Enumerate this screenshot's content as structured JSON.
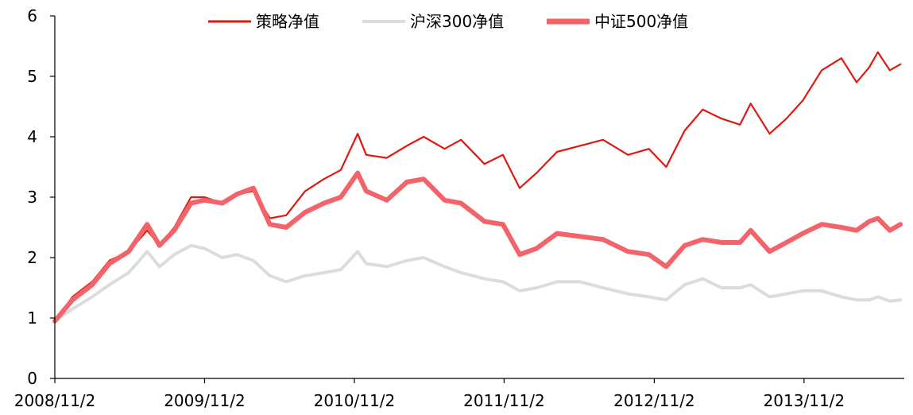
{
  "chart_data": {
    "type": "line",
    "title": "",
    "xlabel": "",
    "ylabel": "",
    "ylim": [
      0,
      6
    ],
    "yticks": [
      "0",
      "1",
      "2",
      "3",
      "4",
      "5",
      "6"
    ],
    "xticks": [
      "2008/11/2",
      "2009/11/2",
      "2010/11/2",
      "2011/11/2",
      "2012/11/2",
      "2013/11/2"
    ],
    "grid": false,
    "legend_position": "top",
    "series": [
      {
        "name": "策略净值",
        "color": "#e0190f",
        "x": [
          "2008/11/2",
          "2008/12/15",
          "2009/2/1",
          "2009/3/15",
          "2009/5/1",
          "2009/6/15",
          "2009/7/15",
          "2009/8/20",
          "2009/9/30",
          "2009/11/2",
          "2009/12/15",
          "2010/1/20",
          "2010/3/1",
          "2010/4/10",
          "2010/5/20",
          "2010/7/5",
          "2010/8/20",
          "2010/9/30",
          "2010/11/10",
          "2010/12/1",
          "2011/1/20",
          "2011/3/10",
          "2011/4/20",
          "2011/6/10",
          "2011/7/20",
          "2011/9/15",
          "2011/10/30",
          "2011/12/10",
          "2012/1/20",
          "2012/3/10",
          "2012/5/5",
          "2012/6/30",
          "2012/8/30",
          "2012/10/20",
          "2012/12/1",
          "2013/1/15",
          "2013/2/28",
          "2013/4/15",
          "2013/5/30",
          "2013/6/25",
          "2013/8/10",
          "2013/9/20",
          "2013/10/30",
          "2013/12/15",
          "2014/2/1",
          "2014/3/10",
          "2014/4/10",
          "2014/5/1",
          "2014/5/30",
          "2014/6/25"
        ],
        "values": [
          0.95,
          1.35,
          1.6,
          1.95,
          2.1,
          2.45,
          2.2,
          2.5,
          3.0,
          3.0,
          2.9,
          3.05,
          3.1,
          2.65,
          2.7,
          3.1,
          3.3,
          3.45,
          4.05,
          3.7,
          3.65,
          3.85,
          4.0,
          3.8,
          3.95,
          3.55,
          3.7,
          3.15,
          3.4,
          3.75,
          3.85,
          3.95,
          3.7,
          3.8,
          3.5,
          4.1,
          4.45,
          4.3,
          4.2,
          4.55,
          4.05,
          4.3,
          4.6,
          5.1,
          5.3,
          4.9,
          5.15,
          5.4,
          5.1,
          5.2
        ]
      },
      {
        "name": "沪深300净值",
        "color": "#dcdcdc",
        "x": [
          "2008/11/2",
          "2008/12/15",
          "2009/2/1",
          "2009/3/15",
          "2009/5/1",
          "2009/6/15",
          "2009/7/15",
          "2009/8/20",
          "2009/9/30",
          "2009/11/2",
          "2009/12/15",
          "2010/1/20",
          "2010/3/1",
          "2010/4/10",
          "2010/5/20",
          "2010/7/5",
          "2010/8/20",
          "2010/9/30",
          "2010/11/10",
          "2010/12/1",
          "2011/1/20",
          "2011/3/10",
          "2011/4/20",
          "2011/6/10",
          "2011/7/20",
          "2011/9/15",
          "2011/10/30",
          "2011/12/10",
          "2012/1/20",
          "2012/3/10",
          "2012/5/5",
          "2012/6/30",
          "2012/8/30",
          "2012/10/20",
          "2012/12/1",
          "2013/1/15",
          "2013/2/28",
          "2013/4/15",
          "2013/5/30",
          "2013/6/25",
          "2013/8/10",
          "2013/9/20",
          "2013/10/30",
          "2013/12/15",
          "2014/2/1",
          "2014/3/10",
          "2014/4/10",
          "2014/5/1",
          "2014/5/30",
          "2014/6/25"
        ],
        "values": [
          0.95,
          1.15,
          1.35,
          1.55,
          1.75,
          2.1,
          1.85,
          2.05,
          2.2,
          2.15,
          2.0,
          2.05,
          1.95,
          1.7,
          1.6,
          1.7,
          1.75,
          1.8,
          2.1,
          1.9,
          1.85,
          1.95,
          2.0,
          1.85,
          1.75,
          1.65,
          1.6,
          1.45,
          1.5,
          1.6,
          1.6,
          1.5,
          1.4,
          1.35,
          1.3,
          1.55,
          1.65,
          1.5,
          1.5,
          1.55,
          1.35,
          1.4,
          1.45,
          1.45,
          1.35,
          1.3,
          1.3,
          1.35,
          1.28,
          1.3
        ]
      },
      {
        "name": "中证500净值",
        "color": "#f26469",
        "x": [
          "2008/11/2",
          "2008/12/15",
          "2009/2/1",
          "2009/3/15",
          "2009/5/1",
          "2009/6/15",
          "2009/7/15",
          "2009/8/20",
          "2009/9/30",
          "2009/11/2",
          "2009/12/15",
          "2010/1/20",
          "2010/3/1",
          "2010/4/10",
          "2010/5/20",
          "2010/7/5",
          "2010/8/20",
          "2010/9/30",
          "2010/11/10",
          "2010/12/1",
          "2011/1/20",
          "2011/3/10",
          "2011/4/20",
          "2011/6/10",
          "2011/7/20",
          "2011/9/15",
          "2011/10/30",
          "2011/12/10",
          "2012/1/20",
          "2012/3/10",
          "2012/5/5",
          "2012/6/30",
          "2012/8/30",
          "2012/10/20",
          "2012/12/1",
          "2013/1/15",
          "2013/2/28",
          "2013/4/15",
          "2013/5/30",
          "2013/6/25",
          "2013/8/10",
          "2013/9/20",
          "2013/10/30",
          "2013/12/15",
          "2014/2/1",
          "2014/3/10",
          "2014/4/10",
          "2014/5/1",
          "2014/5/30",
          "2014/6/25"
        ],
        "values": [
          0.95,
          1.3,
          1.55,
          1.9,
          2.1,
          2.55,
          2.2,
          2.45,
          2.9,
          2.95,
          2.9,
          3.05,
          3.15,
          2.55,
          2.5,
          2.75,
          2.9,
          3.0,
          3.4,
          3.1,
          2.95,
          3.25,
          3.3,
          2.95,
          2.9,
          2.6,
          2.55,
          2.05,
          2.15,
          2.4,
          2.35,
          2.3,
          2.1,
          2.05,
          1.85,
          2.2,
          2.3,
          2.25,
          2.25,
          2.45,
          2.1,
          2.25,
          2.4,
          2.55,
          2.5,
          2.45,
          2.6,
          2.65,
          2.45,
          2.55
        ]
      }
    ]
  }
}
